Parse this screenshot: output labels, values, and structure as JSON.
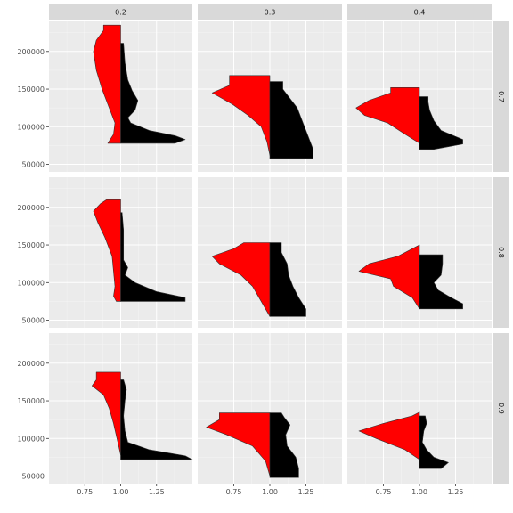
{
  "chart_data": {
    "type": "split-violin",
    "facet_cols": [
      "0.2",
      "0.3",
      "0.4"
    ],
    "facet_rows": [
      "0.7",
      "0.8",
      "0.9"
    ],
    "xlim": [
      0.5,
      1.5
    ],
    "ylim": [
      40000,
      240000
    ],
    "x_ticks": [
      0.75,
      1.0,
      1.25
    ],
    "x_tick_labels": [
      "0.75",
      "1.00",
      "1.25"
    ],
    "y_ticks": [
      50000,
      100000,
      150000,
      200000
    ],
    "y_tick_labels": [
      "50000",
      "100000",
      "150000",
      "200000"
    ],
    "center_x": 1.0,
    "series": [
      {
        "name": "left half",
        "fill": "#ff0000"
      },
      {
        "name": "right half",
        "fill": "#000000"
      }
    ],
    "panels": [
      {
        "col": "0.2",
        "row": "0.7",
        "left": {
          "ymin": 78000,
          "ymax": 235000,
          "profile": [
            [
              78000,
              0.09
            ],
            [
              90000,
              0.05
            ],
            [
              105000,
              0.04
            ],
            [
              125000,
              0.08
            ],
            [
              150000,
              0.13
            ],
            [
              175000,
              0.17
            ],
            [
              200000,
              0.19
            ],
            [
              215000,
              0.17
            ],
            [
              228000,
              0.12
            ],
            [
              235000,
              0.12
            ]
          ]
        },
        "right": {
          "ymin": 78000,
          "ymax": 211000,
          "profile": [
            [
              78000,
              0.38
            ],
            [
              83000,
              0.45
            ],
            [
              88000,
              0.38
            ],
            [
              95000,
              0.2
            ],
            [
              105000,
              0.07
            ],
            [
              112000,
              0.05
            ],
            [
              122000,
              0.1
            ],
            [
              135000,
              0.12
            ],
            [
              148000,
              0.08
            ],
            [
              162000,
              0.05
            ],
            [
              185000,
              0.03
            ],
            [
              211000,
              0.02
            ]
          ]
        }
      },
      {
        "col": "0.3",
        "row": "0.7",
        "left": {
          "ymin": 62000,
          "ymax": 168000,
          "profile": [
            [
              62000,
              0.0
            ],
            [
              80000,
              0.02
            ],
            [
              100000,
              0.06
            ],
            [
              115000,
              0.15
            ],
            [
              130000,
              0.26
            ],
            [
              145000,
              0.4
            ],
            [
              155000,
              0.28
            ],
            [
              168000,
              0.28
            ]
          ]
        },
        "right": {
          "ymin": 58000,
          "ymax": 160000,
          "profile": [
            [
              58000,
              0.3
            ],
            [
              70000,
              0.3
            ],
            [
              90000,
              0.26
            ],
            [
              110000,
              0.22
            ],
            [
              125000,
              0.19
            ],
            [
              140000,
              0.13
            ],
            [
              150000,
              0.09
            ],
            [
              160000,
              0.09
            ]
          ]
        }
      },
      {
        "col": "0.4",
        "row": "0.7",
        "left": {
          "ymin": 78000,
          "ymax": 152000,
          "profile": [
            [
              78000,
              0.0
            ],
            [
              90000,
              0.1
            ],
            [
              105000,
              0.22
            ],
            [
              115000,
              0.38
            ],
            [
              125000,
              0.44
            ],
            [
              135000,
              0.35
            ],
            [
              145000,
              0.2
            ],
            [
              152000,
              0.2
            ]
          ]
        },
        "right": {
          "ymin": 70000,
          "ymax": 140000,
          "profile": [
            [
              70000,
              0.1
            ],
            [
              77000,
              0.3
            ],
            [
              83000,
              0.3
            ],
            [
              95000,
              0.15
            ],
            [
              108000,
              0.1
            ],
            [
              122000,
              0.07
            ],
            [
              133000,
              0.06
            ],
            [
              140000,
              0.06
            ]
          ]
        }
      },
      {
        "col": "0.2",
        "row": "0.8",
        "left": {
          "ymin": 75000,
          "ymax": 210000,
          "profile": [
            [
              75000,
              0.03
            ],
            [
              82000,
              0.05
            ],
            [
              95000,
              0.04
            ],
            [
              115000,
              0.05
            ],
            [
              135000,
              0.06
            ],
            [
              160000,
              0.11
            ],
            [
              180000,
              0.16
            ],
            [
              195000,
              0.19
            ],
            [
              205000,
              0.14
            ],
            [
              210000,
              0.1
            ]
          ]
        },
        "right": {
          "ymin": 75000,
          "ymax": 193000,
          "profile": [
            [
              75000,
              0.45
            ],
            [
              80000,
              0.45
            ],
            [
              88000,
              0.25
            ],
            [
              100000,
              0.1
            ],
            [
              110000,
              0.03
            ],
            [
              120000,
              0.05
            ],
            [
              130000,
              0.02
            ],
            [
              150000,
              0.02
            ],
            [
              170000,
              0.02
            ],
            [
              193000,
              0.01
            ]
          ]
        }
      },
      {
        "col": "0.3",
        "row": "0.8",
        "left": {
          "ymin": 55000,
          "ymax": 153000,
          "profile": [
            [
              55000,
              0.0
            ],
            [
              75000,
              0.06
            ],
            [
              95000,
              0.12
            ],
            [
              110000,
              0.2
            ],
            [
              125000,
              0.35
            ],
            [
              135000,
              0.4
            ],
            [
              145000,
              0.25
            ],
            [
              153000,
              0.18
            ]
          ]
        },
        "right": {
          "ymin": 55000,
          "ymax": 153000,
          "profile": [
            [
              55000,
              0.25
            ],
            [
              65000,
              0.25
            ],
            [
              80000,
              0.2
            ],
            [
              95000,
              0.16
            ],
            [
              110000,
              0.13
            ],
            [
              125000,
              0.12
            ],
            [
              140000,
              0.08
            ],
            [
              153000,
              0.08
            ]
          ]
        }
      },
      {
        "col": "0.4",
        "row": "0.8",
        "left": {
          "ymin": 65000,
          "ymax": 150000,
          "profile": [
            [
              65000,
              0.0
            ],
            [
              80000,
              0.05
            ],
            [
              95000,
              0.18
            ],
            [
              105000,
              0.2
            ],
            [
              115000,
              0.42
            ],
            [
              125000,
              0.35
            ],
            [
              135000,
              0.15
            ],
            [
              150000,
              0.0
            ]
          ]
        },
        "right": {
          "ymin": 65000,
          "ymax": 137000,
          "profile": [
            [
              65000,
              0.3
            ],
            [
              72000,
              0.3
            ],
            [
              80000,
              0.22
            ],
            [
              90000,
              0.13
            ],
            [
              100000,
              0.1
            ],
            [
              110000,
              0.15
            ],
            [
              125000,
              0.16
            ],
            [
              137000,
              0.16
            ]
          ]
        }
      },
      {
        "col": "0.2",
        "row": "0.9",
        "left": {
          "ymin": 78000,
          "ymax": 188000,
          "profile": [
            [
              78000,
              0.0
            ],
            [
              95000,
              0.02
            ],
            [
              120000,
              0.05
            ],
            [
              140000,
              0.08
            ],
            [
              158000,
              0.12
            ],
            [
              170000,
              0.2
            ],
            [
              178000,
              0.17
            ],
            [
              188000,
              0.17
            ]
          ]
        },
        "right": {
          "ymin": 72000,
          "ymax": 178000,
          "profile": [
            [
              72000,
              0.5
            ],
            [
              77000,
              0.45
            ],
            [
              85000,
              0.2
            ],
            [
              95000,
              0.05
            ],
            [
              110000,
              0.03
            ],
            [
              130000,
              0.02
            ],
            [
              150000,
              0.03
            ],
            [
              165000,
              0.04
            ],
            [
              178000,
              0.02
            ]
          ]
        }
      },
      {
        "col": "0.3",
        "row": "0.9",
        "left": {
          "ymin": 50000,
          "ymax": 134000,
          "profile": [
            [
              50000,
              0.0
            ],
            [
              70000,
              0.03
            ],
            [
              90000,
              0.12
            ],
            [
              105000,
              0.3
            ],
            [
              115000,
              0.44
            ],
            [
              125000,
              0.35
            ],
            [
              134000,
              0.35
            ]
          ]
        },
        "right": {
          "ymin": 48000,
          "ymax": 134000,
          "profile": [
            [
              48000,
              0.2
            ],
            [
              60000,
              0.2
            ],
            [
              75000,
              0.18
            ],
            [
              90000,
              0.12
            ],
            [
              105000,
              0.11
            ],
            [
              118000,
              0.14
            ],
            [
              128000,
              0.1
            ],
            [
              134000,
              0.08
            ]
          ]
        }
      },
      {
        "col": "0.4",
        "row": "0.9",
        "left": {
          "ymin": 72000,
          "ymax": 135000,
          "profile": [
            [
              72000,
              0.0
            ],
            [
              85000,
              0.1
            ],
            [
              100000,
              0.3
            ],
            [
              110000,
              0.42
            ],
            [
              120000,
              0.25
            ],
            [
              130000,
              0.05
            ],
            [
              135000,
              0.0
            ]
          ]
        },
        "right": {
          "ymin": 60000,
          "ymax": 130000,
          "profile": [
            [
              60000,
              0.15
            ],
            [
              68000,
              0.2
            ],
            [
              75000,
              0.1
            ],
            [
              85000,
              0.05
            ],
            [
              95000,
              0.02
            ],
            [
              110000,
              0.03
            ],
            [
              120000,
              0.05
            ],
            [
              130000,
              0.04
            ]
          ]
        }
      }
    ]
  }
}
